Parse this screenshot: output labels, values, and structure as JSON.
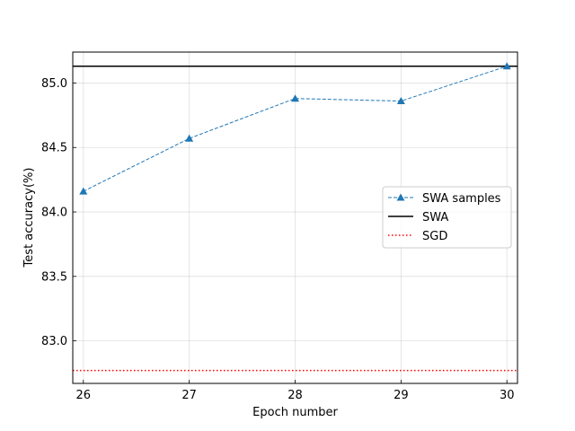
{
  "chart_data": {
    "type": "line",
    "xlabel": "Epoch number",
    "ylabel": "Test accuracy(%)",
    "xlim": [
      25.9,
      30.1
    ],
    "ylim": [
      82.67,
      85.24
    ],
    "xticks": [
      26,
      27,
      28,
      29,
      30
    ],
    "xtick_labels": [
      "26",
      "27",
      "28",
      "29",
      "30"
    ],
    "yticks": [
      83.0,
      83.5,
      84.0,
      84.5,
      85.0
    ],
    "ytick_labels": [
      "83.0",
      "83.5",
      "84.0",
      "84.5",
      "85.0"
    ],
    "grid": true,
    "legend_position": "center-right",
    "series": [
      {
        "name": "SWA samples",
        "style": "dashed",
        "marker": "triangle",
        "color": "#1f77b4",
        "x": [
          26,
          27,
          28,
          29,
          30
        ],
        "y": [
          84.16,
          84.57,
          84.88,
          84.86,
          85.13
        ]
      },
      {
        "name": "SWA",
        "style": "solid",
        "color": "#000000",
        "hline": 85.13
      },
      {
        "name": "SGD",
        "style": "dotted",
        "color": "#ff0000",
        "hline": 82.77
      }
    ]
  }
}
